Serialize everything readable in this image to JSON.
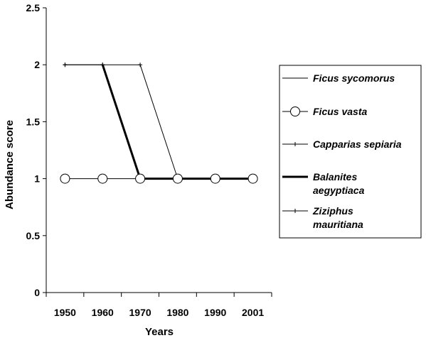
{
  "chart_data": {
    "type": "line",
    "title": "",
    "xlabel": "Years",
    "ylabel": "Abundance score",
    "categories": [
      "1950",
      "1960",
      "1970",
      "1980",
      "1990",
      "2001"
    ],
    "ylim": [
      0,
      2.5
    ],
    "yticks": [
      "0",
      "0.5",
      "1",
      "1.5",
      "2",
      "2.5"
    ],
    "grid": false,
    "legend_position": "right",
    "series": [
      {
        "name": "Ficus sycomorus",
        "values": [
          null,
          2,
          1,
          1,
          1,
          1
        ],
        "style": "thin-line",
        "marker": "none"
      },
      {
        "name": "Ficus vasta",
        "values": [
          1,
          1,
          1,
          1,
          1,
          1
        ],
        "style": "thin-line",
        "marker": "circle"
      },
      {
        "name": "Capparias sepiaria",
        "values": [
          2,
          2,
          2,
          1,
          1,
          1
        ],
        "style": "thin-line",
        "marker": "plus"
      },
      {
        "name": "Balanites aegyptiaca",
        "values": [
          null,
          2,
          1,
          1,
          1,
          1
        ],
        "style": "thick-line",
        "marker": "none"
      },
      {
        "name": "Ziziphus mauritiana",
        "values": [
          2,
          2,
          1,
          1,
          1,
          1
        ],
        "style": "thin-line",
        "marker": "plus"
      }
    ],
    "legend": [
      {
        "lines": [
          "Ficus sycomorus"
        ]
      },
      {
        "lines": [
          "Ficus vasta"
        ]
      },
      {
        "lines": [
          "Capparias sepiaria"
        ]
      },
      {
        "lines": [
          "Balanites",
          "aegyptiaca"
        ]
      },
      {
        "lines": [
          "Ziziphus",
          "mauritiana"
        ]
      }
    ]
  }
}
